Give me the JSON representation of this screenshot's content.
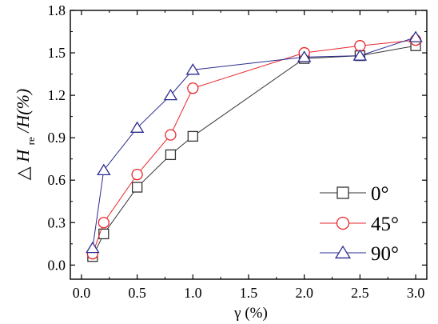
{
  "chart_data": {
    "type": "line",
    "xlabel": "γ (%)",
    "ylabel": {
      "delta": "△",
      "H": "H",
      "sub": "re",
      "rest": "/H(%)"
    },
    "xlim": [
      -0.1,
      3.1
    ],
    "ylim": [
      -0.1,
      1.8
    ],
    "xticks": [
      "0.0",
      "0.5",
      "1.0",
      "1.5",
      "2.0",
      "2.5",
      "3.0"
    ],
    "yticks": [
      "0.0",
      "0.3",
      "0.6",
      "0.9",
      "1.2",
      "1.5",
      "1.8"
    ],
    "grid": false,
    "legend_position": "bottom-right",
    "series": [
      {
        "name": "0°",
        "marker": "square",
        "color": "#333333",
        "x": [
          0.1,
          0.2,
          0.5,
          0.8,
          1.0,
          2.0,
          2.5,
          3.0
        ],
        "y": [
          0.06,
          0.22,
          0.55,
          0.78,
          0.91,
          1.46,
          1.48,
          1.55
        ]
      },
      {
        "name": "45°",
        "marker": "circle",
        "color": "#e8262b",
        "x": [
          0.1,
          0.2,
          0.5,
          0.8,
          1.0,
          2.0,
          2.5,
          3.0
        ],
        "y": [
          0.08,
          0.3,
          0.64,
          0.92,
          1.25,
          1.5,
          1.55,
          1.59
        ]
      },
      {
        "name": "90°",
        "marker": "triangle",
        "color": "#2b2b8f",
        "x": [
          0.1,
          0.2,
          0.5,
          0.8,
          1.0,
          2.0,
          2.5,
          3.0
        ],
        "y": [
          0.12,
          0.67,
          0.97,
          1.2,
          1.38,
          1.47,
          1.48,
          1.61
        ]
      }
    ]
  }
}
